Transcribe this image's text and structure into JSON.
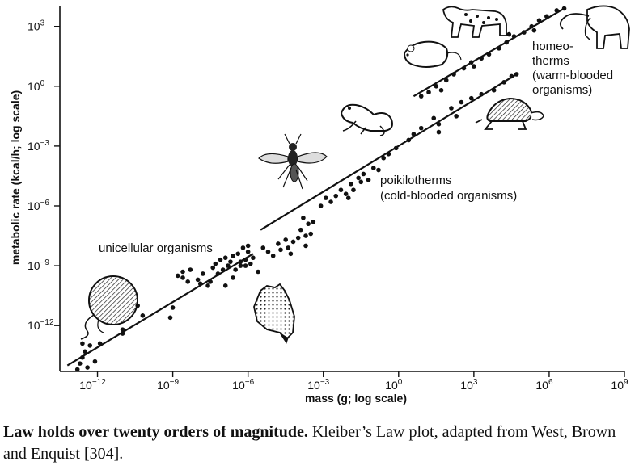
{
  "chart_data": {
    "type": "scatter",
    "xlabel": "mass (g; log scale)",
    "ylabel": "metabolic rate (kcal/h; log scale)",
    "x_scale": "log10",
    "y_scale": "log10",
    "xlim_log10": [
      -13.5,
      9
    ],
    "ylim_log10": [
      -14.3,
      4
    ],
    "x_ticks": [
      {
        "exp": -12,
        "base": "10",
        "sup": "−12"
      },
      {
        "exp": -9,
        "base": "10",
        "sup": "−9"
      },
      {
        "exp": -6,
        "base": "10",
        "sup": "−6"
      },
      {
        "exp": -3,
        "base": "10",
        "sup": "−3"
      },
      {
        "exp": 0,
        "base": "10",
        "sup": "0"
      },
      {
        "exp": 3,
        "base": "10",
        "sup": "3"
      },
      {
        "exp": 6,
        "base": "10",
        "sup": "6"
      },
      {
        "exp": 9,
        "base": "10",
        "sup": "9"
      }
    ],
    "y_ticks": [
      {
        "exp": 3,
        "base": "10",
        "sup": "3"
      },
      {
        "exp": 0,
        "base": "10",
        "sup": "0"
      },
      {
        "exp": -3,
        "base": "10",
        "sup": "−3"
      },
      {
        "exp": -6,
        "base": "10",
        "sup": "−6"
      },
      {
        "exp": -9,
        "base": "10",
        "sup": "−9"
      },
      {
        "exp": -12,
        "base": "10",
        "sup": "−12"
      }
    ],
    "grid": false,
    "annotations": [
      {
        "id": "unicellular",
        "lines": [
          "unicellular organisms"
        ]
      },
      {
        "id": "poikilotherms",
        "lines": [
          "poikilotherms",
          "(cold-blooded organisms)"
        ]
      },
      {
        "id": "homeotherms",
        "lines": [
          "homeo-",
          "therms",
          "(warm-blooded",
          "organisms)"
        ]
      }
    ],
    "fit_lines": [
      {
        "group": "unicellular",
        "x_log10": [
          -13.2,
          -5.8
        ],
        "y_log10": [
          -14.0,
          -8.4
        ]
      },
      {
        "group": "poikilotherms",
        "x_log10": [
          -5.5,
          4.7
        ],
        "y_log10": [
          -7.2,
          0.6
        ]
      },
      {
        "group": "homeotherms",
        "x_log10": [
          0.6,
          6.6
        ],
        "y_log10": [
          -0.5,
          3.9
        ]
      }
    ],
    "points_log10": [
      [
        -12.8,
        -14.2
      ],
      [
        -12.7,
        -13.9
      ],
      [
        -12.6,
        -13.6
      ],
      [
        -12.5,
        -13.3
      ],
      [
        -12.3,
        -13.0
      ],
      [
        -12.6,
        -12.9
      ],
      [
        -12.1,
        -13.8
      ],
      [
        -12.4,
        -14.1
      ],
      [
        -11.9,
        -12.9
      ],
      [
        -11.0,
        -12.2
      ],
      [
        -11.0,
        -12.4
      ],
      [
        -10.4,
        -11.0
      ],
      [
        -10.2,
        -11.5
      ],
      [
        -9.0,
        -11.1
      ],
      [
        -9.1,
        -11.6
      ],
      [
        -8.8,
        -9.5
      ],
      [
        -8.6,
        -9.6
      ],
      [
        -8.6,
        -9.3
      ],
      [
        -8.3,
        -9.2
      ],
      [
        -8.4,
        -9.8
      ],
      [
        -8.0,
        -9.7
      ],
      [
        -7.9,
        -9.9
      ],
      [
        -7.8,
        -9.4
      ],
      [
        -7.6,
        -10.0
      ],
      [
        -7.5,
        -9.8
      ],
      [
        -7.4,
        -9.1
      ],
      [
        -7.3,
        -8.9
      ],
      [
        -7.2,
        -9.4
      ],
      [
        -7.1,
        -8.7
      ],
      [
        -7.0,
        -9.2
      ],
      [
        -6.9,
        -8.6
      ],
      [
        -6.8,
        -9.0
      ],
      [
        -6.7,
        -8.8
      ],
      [
        -6.6,
        -8.5
      ],
      [
        -6.5,
        -9.2
      ],
      [
        -6.4,
        -8.4
      ],
      [
        -6.3,
        -8.8
      ],
      [
        -6.2,
        -8.1
      ],
      [
        -6.1,
        -8.7
      ],
      [
        -6.0,
        -8.3
      ],
      [
        -5.9,
        -8.9
      ],
      [
        -5.8,
        -8.6
      ],
      [
        -6.6,
        -9.6
      ],
      [
        -6.9,
        -10.0
      ],
      [
        -6.3,
        -9.0
      ],
      [
        -6.0,
        -8.0
      ],
      [
        -6.1,
        -9.0
      ],
      [
        -5.6,
        -9.3
      ],
      [
        -5.4,
        -8.1
      ],
      [
        -5.2,
        -8.3
      ],
      [
        -5.0,
        -8.5
      ],
      [
        -4.8,
        -7.9
      ],
      [
        -4.7,
        -8.2
      ],
      [
        -4.5,
        -7.7
      ],
      [
        -4.3,
        -8.4
      ],
      [
        -4.2,
        -7.8
      ],
      [
        -4.0,
        -7.6
      ],
      [
        -3.9,
        -7.2
      ],
      [
        -3.7,
        -7.5
      ],
      [
        -3.6,
        -6.9
      ],
      [
        -3.5,
        -7.4
      ],
      [
        -3.8,
        -6.6
      ],
      [
        -3.4,
        -6.8
      ],
      [
        -3.7,
        -8.0
      ],
      [
        -4.4,
        -8.1
      ],
      [
        -3.1,
        -6.0
      ],
      [
        -2.9,
        -5.6
      ],
      [
        -2.7,
        -5.8
      ],
      [
        -2.5,
        -5.5
      ],
      [
        -2.3,
        -5.2
      ],
      [
        -2.1,
        -5.4
      ],
      [
        -1.9,
        -4.9
      ],
      [
        -1.8,
        -5.2
      ],
      [
        -1.6,
        -4.6
      ],
      [
        -1.4,
        -4.4
      ],
      [
        -1.2,
        -4.7
      ],
      [
        -1.0,
        -4.1
      ],
      [
        -0.8,
        -4.2
      ],
      [
        -0.6,
        -3.6
      ],
      [
        -0.4,
        -3.4
      ],
      [
        -0.1,
        -3.1
      ],
      [
        0.4,
        -2.7
      ],
      [
        0.6,
        -2.4
      ],
      [
        0.9,
        -2.1
      ],
      [
        1.4,
        -1.6
      ],
      [
        1.6,
        -1.9
      ],
      [
        2.1,
        -1.1
      ],
      [
        2.5,
        -0.8
      ],
      [
        2.9,
        -0.6
      ],
      [
        3.3,
        -0.4
      ],
      [
        3.8,
        -0.2
      ],
      [
        4.2,
        0.2
      ],
      [
        4.5,
        0.5
      ],
      [
        4.7,
        0.6
      ],
      [
        1.6,
        -2.3
      ],
      [
        2.3,
        -1.5
      ],
      [
        -2.0,
        -5.6
      ],
      [
        -1.5,
        -4.8
      ],
      [
        0.9,
        -0.5
      ],
      [
        1.2,
        -0.3
      ],
      [
        1.5,
        0.0
      ],
      [
        1.9,
        0.3
      ],
      [
        2.2,
        0.6
      ],
      [
        2.6,
        0.9
      ],
      [
        2.9,
        1.2
      ],
      [
        3.3,
        1.4
      ],
      [
        3.6,
        1.6
      ],
      [
        4.0,
        1.9
      ],
      [
        4.3,
        2.2
      ],
      [
        4.6,
        2.5
      ],
      [
        5.0,
        2.7
      ],
      [
        5.3,
        3.0
      ],
      [
        5.6,
        3.3
      ],
      [
        5.9,
        3.5
      ],
      [
        6.3,
        3.8
      ],
      [
        6.6,
        3.9
      ],
      [
        3.0,
        1.0
      ],
      [
        4.4,
        2.6
      ],
      [
        1.7,
        -0.2
      ],
      [
        5.4,
        2.8
      ]
    ]
  },
  "caption": {
    "bold": "Law holds over twenty orders of magnitude.",
    "text": " Kleiber’s Law plot, adapted from West, Brown and Enquist [304]."
  }
}
